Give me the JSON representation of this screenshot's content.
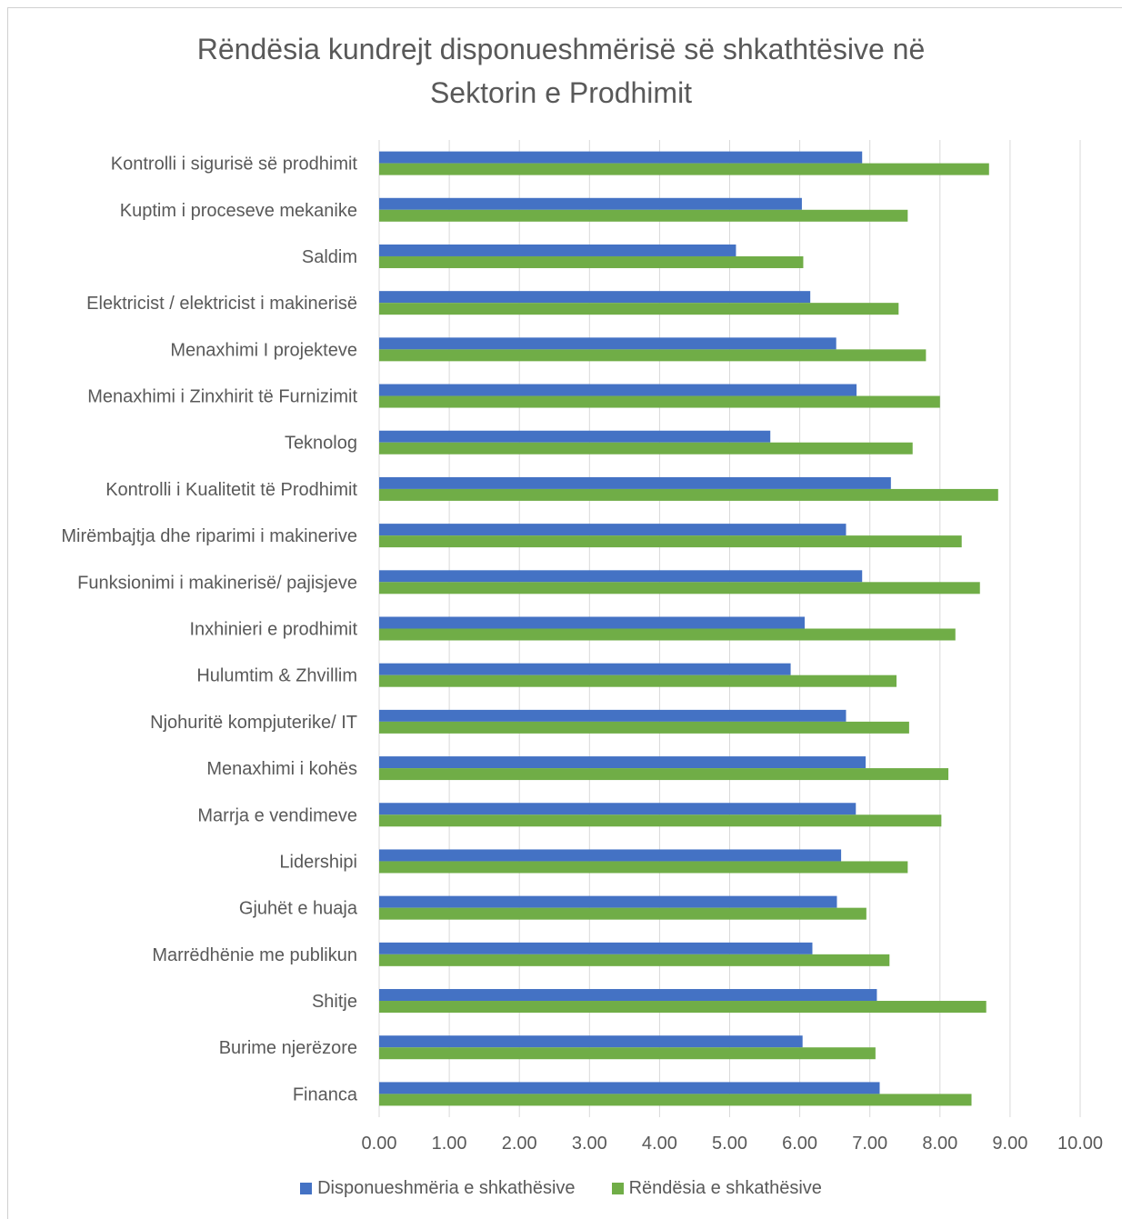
{
  "chart_data": {
    "type": "bar",
    "orientation": "horizontal",
    "title": "Rëndësia kundrejt disponueshmërisë së shkathtësive në Sektorin e Prodhimit",
    "title_lines": [
      "Rëndësia kundrejt disponueshmërisë së shkathtësive në",
      "Sektorin e Prodhimit"
    ],
    "categories": [
      "Kontrolli i sigurisë së prodhimit",
      "Kuptim i proceseve mekanike",
      "Saldim",
      "Elektricist / elektricist i makinerisë",
      "Menaxhimi I projekteve",
      "Menaxhimi i Zinxhirit të Furnizimit",
      "Teknolog",
      "Kontrolli i Kualitetit të Prodhimit",
      "Mirëmbajtja dhe riparimi i makinerive",
      "Funksionimi i makinerisë/ pajisjeve",
      "Inxhinieri e prodhimit",
      "Hulumtim & Zhvillim",
      "Njohuritë kompjuterike/ IT",
      "Menaxhimi i kohës",
      "Marrja e vendimeve",
      "Lidershipi",
      "Gjuhët e huaja",
      "Marrëdhënie me publikun",
      "Shitje",
      "Burime njerëzore",
      "Financa"
    ],
    "series": [
      {
        "name": "Disponueshmëria e shkathësive",
        "color": "#4472c4",
        "values": [
          6.89,
          6.03,
          5.09,
          6.15,
          6.52,
          6.81,
          5.58,
          7.3,
          6.66,
          6.89,
          6.07,
          5.87,
          6.66,
          6.94,
          6.8,
          6.59,
          6.53,
          6.18,
          7.1,
          6.04,
          7.14
        ]
      },
      {
        "name": "Rëndësia e shkathësive",
        "color": "#70ad47",
        "values": [
          8.7,
          7.54,
          6.05,
          7.41,
          7.8,
          8.0,
          7.61,
          8.83,
          8.31,
          8.57,
          8.22,
          7.38,
          7.56,
          8.12,
          8.02,
          7.54,
          6.95,
          7.28,
          8.66,
          7.08,
          8.45
        ]
      }
    ],
    "xlim": [
      0,
      10
    ],
    "x_ticks": [
      "0.00",
      "1.00",
      "2.00",
      "3.00",
      "4.00",
      "5.00",
      "6.00",
      "7.00",
      "8.00",
      "9.00",
      "10.00"
    ],
    "grid": "vertical",
    "legend_position": "bottom"
  }
}
